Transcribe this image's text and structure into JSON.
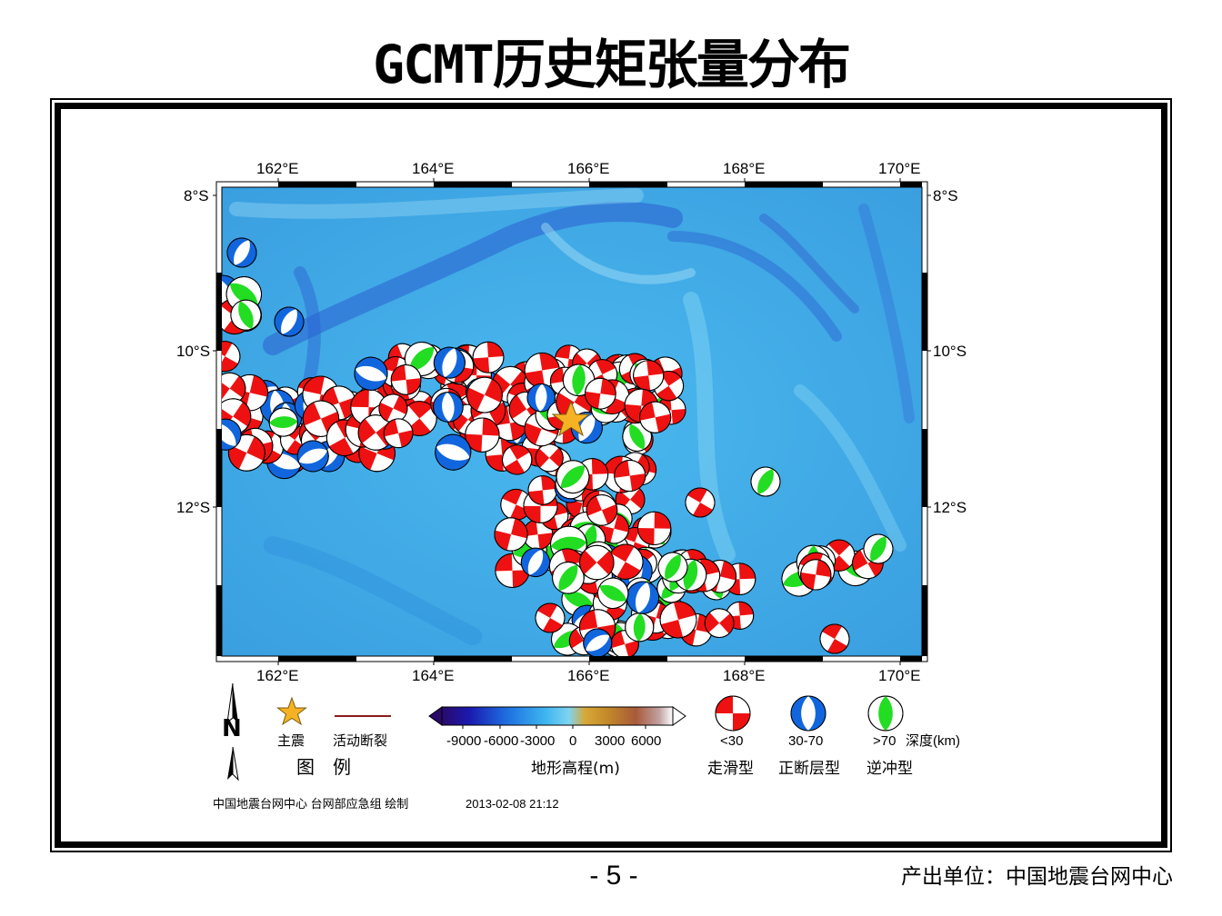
{
  "title": "GCMT历史矩张量分布",
  "map": {
    "longitudes": [
      "162°E",
      "164°E",
      "166°E",
      "168°E",
      "170°E"
    ],
    "latitudes": [
      "8°S",
      "10°S",
      "12°S"
    ],
    "colors": {
      "strike_slip": "#ee1111",
      "normal_fault": "#1166dd",
      "thrust": "#22dd22",
      "fault_line": "#8b1a1a",
      "star": "#f5b323"
    }
  },
  "legend": {
    "title": "图　例",
    "mainshock": "主震",
    "active_fault": "活动断裂",
    "north_label": "N",
    "elevation_ticks": [
      "-9000",
      "-6000",
      "-3000",
      "0",
      "3000",
      "6000"
    ],
    "elevation_label": "地形高程(m)",
    "depth_values": [
      "<30",
      "30-70",
      ">70"
    ],
    "depth_unit": "深度(km)",
    "mechanisms": [
      "走滑型",
      "正断层型",
      "逆冲型"
    ]
  },
  "credit": {
    "producer": "中国地震台网中心 台网部应急组 绘制",
    "timestamp": "2013-02-08 21:12"
  },
  "page_number": "- 5 -",
  "footer": "产出单位：中国地震台网中心"
}
